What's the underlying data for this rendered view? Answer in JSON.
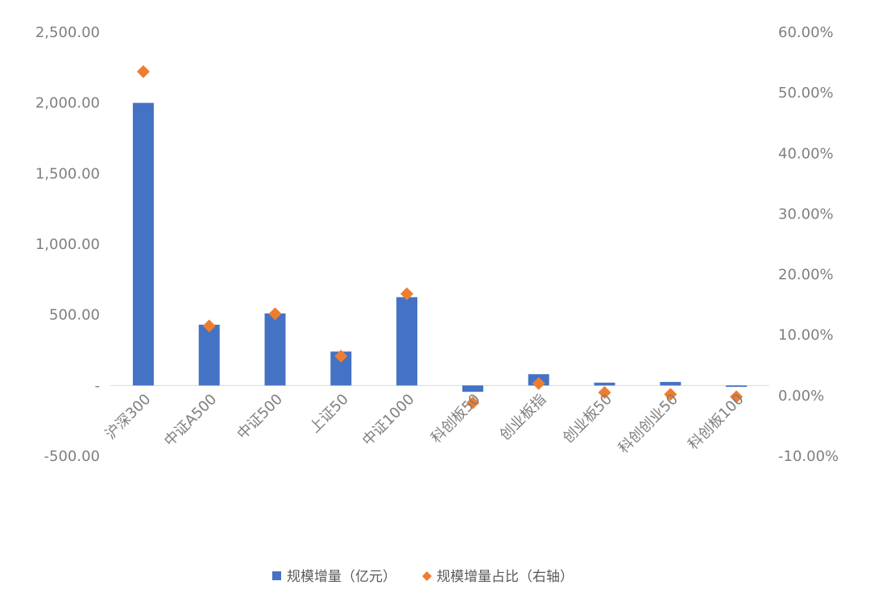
{
  "chart_data": {
    "type": "bar",
    "categories": [
      "沪深300",
      "中证A500",
      "中证500",
      "上证50",
      "中证1000",
      "科创板50",
      "创业板指",
      "创业板50",
      "科创创业50",
      "科创板100"
    ],
    "series": [
      {
        "name": "规模增量（亿元）",
        "type": "bar",
        "axis": "left",
        "color": "#4472C4",
        "values": [
          2000,
          430,
          510,
          240,
          625,
          -45,
          80,
          20,
          25,
          -10
        ]
      },
      {
        "name": "规模增量占比（右轴）",
        "type": "scatter",
        "marker": "diamond",
        "axis": "right",
        "color": "#ED7D31",
        "values": [
          53.5,
          11.5,
          13.5,
          6.5,
          16.8,
          -1.2,
          2.0,
          0.5,
          0.2,
          -0.2
        ]
      }
    ],
    "y_left": {
      "ylim": [
        -500,
        2500
      ],
      "ticks": [
        2500,
        2000,
        1500,
        1000,
        500,
        0,
        -500
      ],
      "tick_labels": [
        "2,500.00",
        "2,000.00",
        "1,500.00",
        "1,000.00",
        "500.00",
        "-",
        "-500.00"
      ]
    },
    "y_right": {
      "ylim": [
        -10,
        60
      ],
      "ticks": [
        60,
        50,
        40,
        30,
        20,
        10,
        0,
        -10
      ],
      "tick_labels": [
        "60.00%",
        "50.00%",
        "40.00%",
        "30.00%",
        "20.00%",
        "10.00%",
        "0.00%",
        "-10.00%"
      ]
    },
    "grid": false,
    "legend": "bottom-center",
    "legend_entries": [
      "规模增量（亿元）",
      "规模增量占比（右轴）"
    ]
  }
}
